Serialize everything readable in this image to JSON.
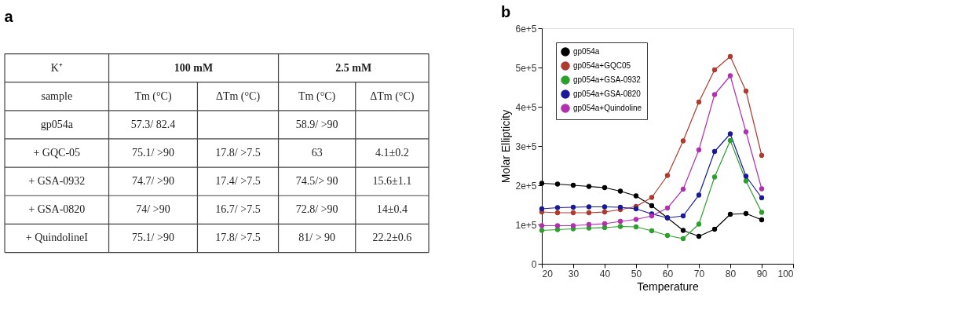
{
  "chart_data": [
    {
      "type": "other",
      "title": "a",
      "cell_labels": [
        [
          "K⁺",
          "100 mM",
          "2.5 mM"
        ],
        [
          "sample",
          "Tm (°C)",
          "ΔTm (°C)",
          "Tm (°C)",
          "ΔTm (°C)"
        ],
        [
          "gp054a",
          "57.3/ 82.4",
          null,
          "58.9/ >90",
          null
        ],
        [
          "+ GQC-05",
          "75.1/ >90",
          "17.8/ >7.5",
          "63",
          "4.1±0.2"
        ],
        [
          "+ GSA-0932",
          "74.7/ >90",
          "17.4/ >7.5",
          "74.5/> 90",
          "15.6±1.1"
        ],
        [
          "+ GSA-0820",
          "74/ >90",
          "16.7/ >7.5",
          "72.8/ >90",
          "14±0.4"
        ],
        [
          "+ QuindolineI",
          "75.1/ >90",
          "17.8/ >7.5",
          "81/ > 90",
          "22.2±0.6"
        ]
      ]
    },
    {
      "type": "line",
      "title": "b",
      "xlabel": "Temperature",
      "ylabel": "Molar Ellipticity",
      "x": [
        20,
        25,
        30,
        35,
        40,
        45,
        50,
        55,
        60,
        65,
        70,
        75,
        80,
        85,
        90
      ],
      "xlim": [
        20,
        100
      ],
      "xticks": [
        20,
        30,
        40,
        50,
        60,
        70,
        80,
        90,
        100
      ],
      "ylim": [
        0,
        600000
      ],
      "yticks": [
        0,
        {
          "value": 100000,
          "label": "1e+5"
        },
        {
          "value": 200000,
          "label": "2e+5"
        },
        {
          "value": 300000,
          "label": "3e+5"
        },
        {
          "value": 400000,
          "label": "4e+5"
        },
        {
          "value": 500000,
          "label": "5e+5"
        },
        {
          "value": 600000,
          "label": "6e+5"
        }
      ],
      "grid": false,
      "legend": "top left",
      "marker": "circle",
      "line_style": "solid",
      "series": [
        {
          "name": "gp054a",
          "color": "#000000",
          "values": [
            205000,
            203000,
            200000,
            197000,
            194000,
            185000,
            173000,
            148000,
            117000,
            85000,
            70000,
            88000,
            126000,
            128000,
            112000
          ]
        },
        {
          "name": "gp054a+GQC05",
          "color": "#b03a2e",
          "values": [
            132000,
            130000,
            130000,
            130000,
            132000,
            138000,
            146000,
            169000,
            225000,
            313000,
            412000,
            494000,
            528000,
            440000,
            276000
          ]
        },
        {
          "name": "gp054a+GSA-0932",
          "color": "#2ca02c",
          "values": [
            85000,
            87000,
            89000,
            91000,
            92000,
            95000,
            94000,
            84000,
            72000,
            64000,
            101000,
            221000,
            314000,
            211000,
            131000
          ]
        },
        {
          "name": "gp054a+GSA-0820",
          "color": "#1a1a99",
          "values": [
            140000,
            143000,
            144000,
            145000,
            145000,
            144000,
            140000,
            127000,
            117000,
            122000,
            175000,
            286000,
            331000,
            223000,
            168000
          ]
        },
        {
          "name": "gp054a+Quindoline",
          "color": "#b030b0",
          "values": [
            97000,
            97000,
            97000,
            100000,
            102000,
            108000,
            113000,
            122000,
            142000,
            190000,
            290000,
            431000,
            479000,
            336000,
            191000
          ]
        }
      ]
    }
  ]
}
